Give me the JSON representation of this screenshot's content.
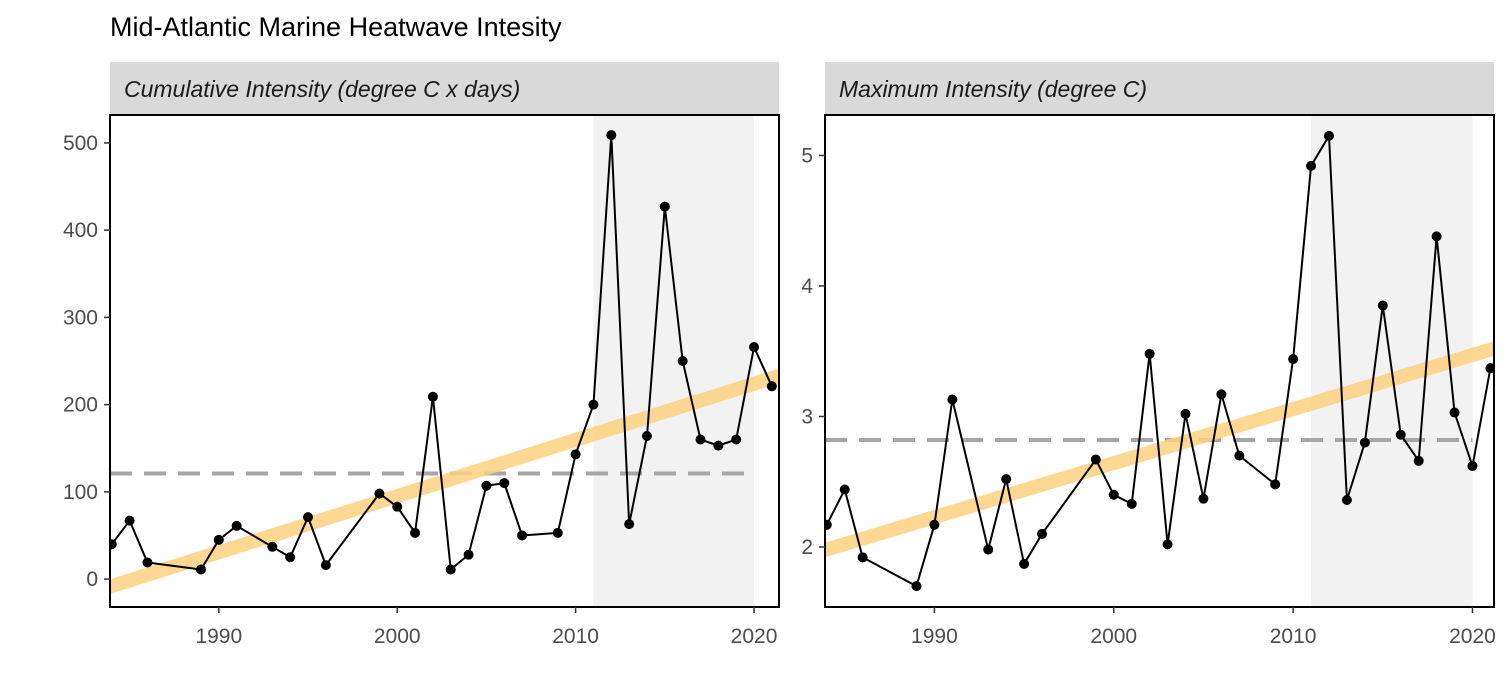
{
  "title": "Mid-Atlantic Marine Heatwave Intesity",
  "colors": {
    "strip": "#d9d9d9",
    "shade": "#f2f2f2",
    "trend": "#fdd280",
    "mean": "#a6a6a6",
    "series": "#000000",
    "axis": "#000000",
    "tick_text": "#4d4d4d"
  },
  "chart_data": [
    {
      "type": "line",
      "strip_label": "Cumulative Intensity (degree C x days)",
      "xlim": [
        1983.9,
        2021.4
      ],
      "ylim": [
        -32,
        532
      ],
      "x_ticks": [
        1990,
        2000,
        2010,
        2020
      ],
      "y_ticks": [
        0,
        100,
        200,
        300,
        400,
        500
      ],
      "shaded_range": [
        2011,
        2020
      ],
      "mean_line": 121,
      "trend": {
        "from": [
          1984,
          -8
        ],
        "to": [
          2021.4,
          233
        ]
      },
      "grid": false,
      "series": [
        {
          "x": [
            1984,
            1985,
            1986,
            1989,
            1990,
            1991,
            1993,
            1994,
            1995,
            1996,
            1999,
            2000,
            2001,
            2002,
            2003,
            2004,
            2005,
            2006,
            2007,
            2009,
            2010,
            2011,
            2012,
            2013,
            2014,
            2015,
            2016,
            2017,
            2018,
            2019,
            2020,
            2021
          ],
          "y": [
            40,
            67,
            19,
            11,
            45,
            61,
            37,
            25,
            71,
            16,
            98,
            83,
            53,
            209,
            11,
            28,
            107,
            110,
            50,
            53,
            143,
            200,
            509,
            63,
            164,
            427,
            250,
            160,
            153,
            160,
            266,
            221
          ]
        }
      ]
    },
    {
      "type": "line",
      "strip_label": "Maximum Intensity (degree C)",
      "xlim": [
        1983.9,
        2021.2
      ],
      "ylim": [
        1.54,
        5.31
      ],
      "x_ticks": [
        1990,
        2000,
        2010,
        2020
      ],
      "y_ticks": [
        2,
        3,
        4,
        5
      ],
      "shaded_range": [
        2011,
        2020
      ],
      "mean_line": 2.82,
      "trend": {
        "from": [
          1984,
          1.98
        ],
        "to": [
          2021.2,
          3.52
        ]
      },
      "grid": false,
      "series": [
        {
          "x": [
            1984,
            1985,
            1986,
            1989,
            1990,
            1991,
            1993,
            1994,
            1995,
            1996,
            1999,
            2000,
            2001,
            2002,
            2003,
            2004,
            2005,
            2006,
            2007,
            2009,
            2010,
            2011,
            2012,
            2013,
            2014,
            2015,
            2016,
            2017,
            2018,
            2019,
            2020,
            2021
          ],
          "y": [
            2.17,
            2.44,
            1.92,
            1.7,
            2.17,
            3.13,
            1.98,
            2.52,
            1.87,
            2.1,
            2.67,
            2.4,
            2.33,
            3.48,
            2.02,
            3.02,
            2.37,
            3.17,
            2.7,
            2.48,
            3.44,
            4.92,
            5.15,
            2.36,
            2.8,
            3.85,
            2.86,
            2.66,
            4.38,
            3.03,
            2.62,
            3.37
          ]
        }
      ]
    }
  ]
}
